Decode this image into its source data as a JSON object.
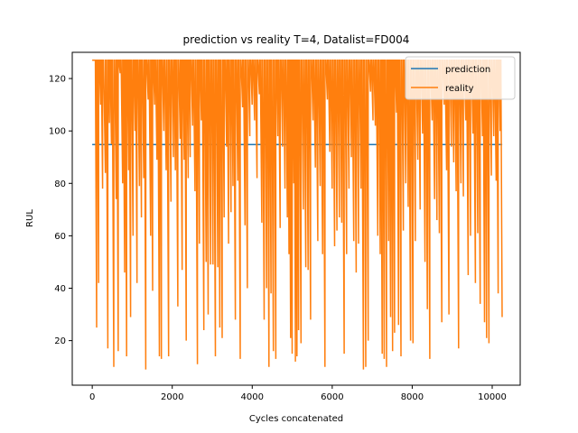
{
  "chart_data": {
    "type": "line",
    "title": "prediction vs reality T=4, Datalist=FD004",
    "xlabel": "Cycles concatenated",
    "ylabel": "RUL",
    "xlim": [
      -500,
      10700
    ],
    "ylim": [
      3,
      130
    ],
    "xticks": [
      0,
      2000,
      4000,
      6000,
      8000,
      10000
    ],
    "yticks": [
      20,
      40,
      60,
      80,
      100,
      120
    ],
    "grid": false,
    "legend_placement": "top-right",
    "colors": {
      "prediction": "#1f77b4",
      "reality": "#ff7f0e"
    },
    "series": [
      {
        "name": "prediction",
        "points": [
          [
            0,
            94.8
          ],
          [
            10250,
            94.8
          ]
        ]
      },
      {
        "name": "reality",
        "cap": 127,
        "series_end": 10250,
        "cycle_minima": [
          [
            0,
            127
          ],
          [
            60,
            25
          ],
          [
            110,
            42
          ],
          [
            160,
            110
          ],
          [
            210,
            78
          ],
          [
            260,
            84
          ],
          [
            330,
            17
          ],
          [
            390,
            103
          ],
          [
            430,
            95
          ],
          [
            480,
            10
          ],
          [
            540,
            74
          ],
          [
            600,
            16
          ],
          [
            650,
            122
          ],
          [
            700,
            80
          ],
          [
            760,
            46
          ],
          [
            810,
            14
          ],
          [
            860,
            85
          ],
          [
            910,
            29
          ],
          [
            960,
            60
          ],
          [
            1020,
            100
          ],
          [
            1070,
            42
          ],
          [
            1120,
            79
          ],
          [
            1180,
            67
          ],
          [
            1230,
            82
          ],
          [
            1290,
            9
          ],
          [
            1340,
            112
          ],
          [
            1400,
            60
          ],
          [
            1460,
            39
          ],
          [
            1510,
            110
          ],
          [
            1560,
            89
          ],
          [
            1620,
            14
          ],
          [
            1680,
            13
          ],
          [
            1730,
            100
          ],
          [
            1790,
            85
          ],
          [
            1850,
            14
          ],
          [
            1910,
            73
          ],
          [
            1970,
            90
          ],
          [
            2030,
            85
          ],
          [
            2080,
            33
          ],
          [
            2140,
            97
          ],
          [
            2200,
            47
          ],
          [
            2250,
            89
          ],
          [
            2300,
            20
          ],
          [
            2350,
            82
          ],
          [
            2400,
            90
          ],
          [
            2450,
            102
          ],
          [
            2510,
            77
          ],
          [
            2570,
            11
          ],
          [
            2630,
            57
          ],
          [
            2680,
            104
          ],
          [
            2730,
            24
          ],
          [
            2790,
            50
          ],
          [
            2850,
            30
          ],
          [
            2900,
            49
          ],
          [
            2960,
            49
          ],
          [
            3020,
            14
          ],
          [
            3080,
            48
          ],
          [
            3140,
            25
          ],
          [
            3190,
            21
          ],
          [
            3250,
            67
          ],
          [
            3300,
            94
          ],
          [
            3360,
            57
          ],
          [
            3410,
            69
          ],
          [
            3470,
            79
          ],
          [
            3520,
            28
          ],
          [
            3580,
            81
          ],
          [
            3640,
            13
          ],
          [
            3700,
            109
          ],
          [
            3760,
            64
          ],
          [
            3820,
            40
          ],
          [
            3880,
            98
          ],
          [
            3940,
            110
          ],
          [
            4000,
            104
          ],
          [
            4060,
            82
          ],
          [
            4120,
            114
          ],
          [
            4180,
            65
          ],
          [
            4240,
            28
          ],
          [
            4300,
            40
          ],
          [
            4360,
            10
          ],
          [
            4420,
            38
          ],
          [
            4470,
            16
          ],
          [
            4530,
            13
          ],
          [
            4590,
            98
          ],
          [
            4640,
            63
          ],
          [
            4700,
            94
          ],
          [
            4760,
            78
          ],
          [
            4820,
            67
          ],
          [
            4880,
            53
          ],
          [
            4920,
            21
          ],
          [
            4960,
            15
          ],
          [
            5000,
            80
          ],
          [
            5040,
            12
          ],
          [
            5080,
            14
          ],
          [
            5120,
            24
          ],
          [
            5160,
            19
          ],
          [
            5220,
            70
          ],
          [
            5280,
            48
          ],
          [
            5340,
            47
          ],
          [
            5400,
            28
          ],
          [
            5460,
            104
          ],
          [
            5520,
            86
          ],
          [
            5580,
            58
          ],
          [
            5640,
            79
          ],
          [
            5700,
            53
          ],
          [
            5760,
            10
          ],
          [
            5820,
            112
          ],
          [
            5880,
            92
          ],
          [
            5940,
            78
          ],
          [
            6000,
            56
          ],
          [
            6060,
            62
          ],
          [
            6120,
            67
          ],
          [
            6180,
            65
          ],
          [
            6240,
            15
          ],
          [
            6300,
            53
          ],
          [
            6360,
            78
          ],
          [
            6420,
            90
          ],
          [
            6480,
            58
          ],
          [
            6540,
            46
          ],
          [
            6600,
            57
          ],
          [
            6660,
            78
          ],
          [
            6720,
            9
          ],
          [
            6780,
            10
          ],
          [
            6840,
            20
          ],
          [
            6900,
            115
          ],
          [
            6960,
            104
          ],
          [
            7020,
            102
          ],
          [
            7080,
            60
          ],
          [
            7140,
            53
          ],
          [
            7200,
            15
          ],
          [
            7250,
            13
          ],
          [
            7300,
            10
          ],
          [
            7360,
            58
          ],
          [
            7410,
            29
          ],
          [
            7460,
            16
          ],
          [
            7510,
            23
          ],
          [
            7560,
            107
          ],
          [
            7610,
            26
          ],
          [
            7660,
            14
          ],
          [
            7720,
            62
          ],
          [
            7780,
            80
          ],
          [
            7840,
            71
          ],
          [
            7900,
            20
          ],
          [
            7960,
            19
          ],
          [
            8020,
            58
          ],
          [
            8080,
            89
          ],
          [
            8140,
            70
          ],
          [
            8200,
            99
          ],
          [
            8260,
            50
          ],
          [
            8320,
            32
          ],
          [
            8380,
            13
          ],
          [
            8440,
            104
          ],
          [
            8500,
            74
          ],
          [
            8560,
            66
          ],
          [
            8620,
            61
          ],
          [
            8680,
            27
          ],
          [
            8740,
            110
          ],
          [
            8800,
            85
          ],
          [
            8860,
            30
          ],
          [
            8920,
            94
          ],
          [
            8980,
            88
          ],
          [
            9040,
            77
          ],
          [
            9100,
            17
          ],
          [
            9160,
            80
          ],
          [
            9220,
            75
          ],
          [
            9280,
            104
          ],
          [
            9340,
            45
          ],
          [
            9400,
            60
          ],
          [
            9460,
            99
          ],
          [
            9520,
            42
          ],
          [
            9580,
            61
          ],
          [
            9640,
            34
          ],
          [
            9700,
            98
          ],
          [
            9760,
            27
          ],
          [
            9810,
            21
          ],
          [
            9860,
            19
          ],
          [
            9920,
            83
          ],
          [
            9980,
            98
          ],
          [
            10040,
            81
          ],
          [
            10100,
            38
          ],
          [
            10150,
            100
          ],
          [
            10200,
            29
          ]
        ]
      }
    ]
  }
}
